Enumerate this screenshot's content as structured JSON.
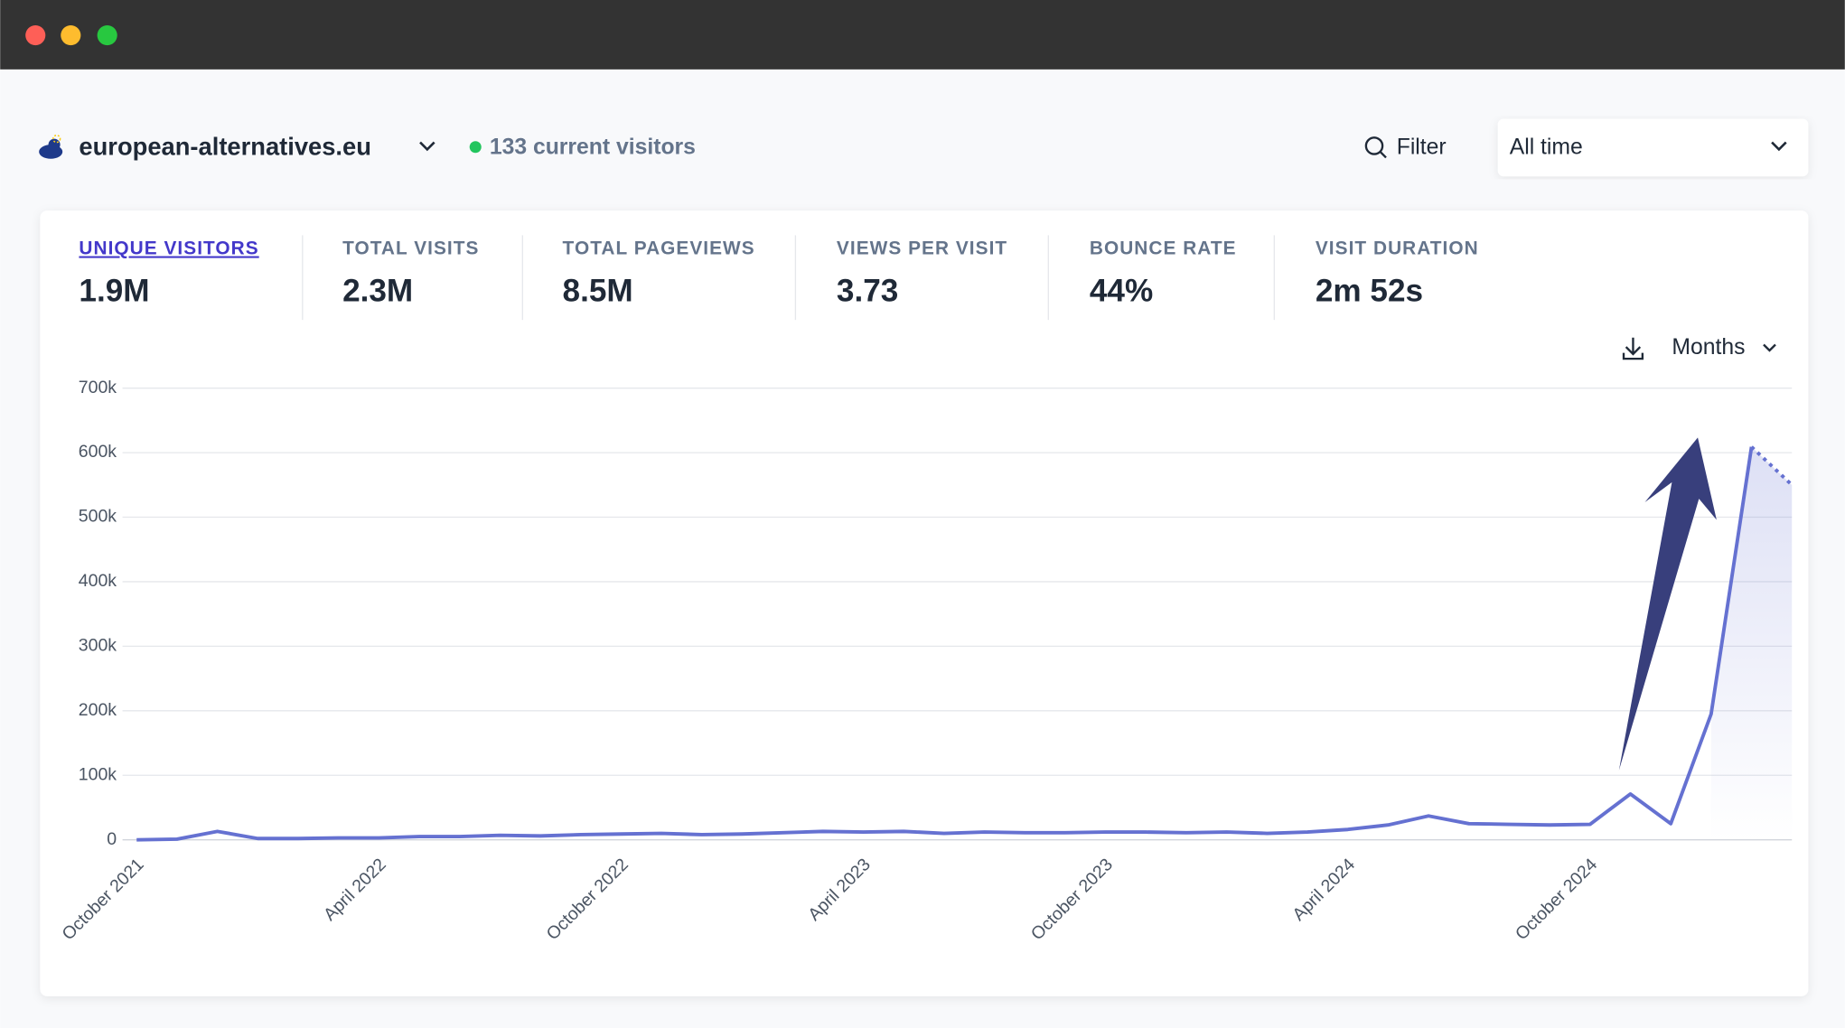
{
  "header": {
    "site": "european-alternatives.eu",
    "current_visitors": "133 current visitors",
    "filter": "Filter",
    "period": "All time"
  },
  "metrics": [
    {
      "label": "UNIQUE VISITORS",
      "value": "1.9M"
    },
    {
      "label": "TOTAL VISITS",
      "value": "2.3M"
    },
    {
      "label": "TOTAL PAGEVIEWS",
      "value": "8.5M"
    },
    {
      "label": "VIEWS PER VISIT",
      "value": "3.73"
    },
    {
      "label": "BOUNCE RATE",
      "value": "44%"
    },
    {
      "label": "VISIT DURATION",
      "value": "2m 52s"
    }
  ],
  "interval": "Months",
  "chart_data": {
    "type": "line",
    "categories": [
      "October 2021",
      null,
      null,
      null,
      null,
      null,
      "April 2022",
      null,
      null,
      null,
      null,
      null,
      "October 2022",
      null,
      null,
      null,
      null,
      null,
      "April 2023",
      null,
      null,
      null,
      null,
      null,
      "October 2023",
      null,
      null,
      null,
      null,
      null,
      "April 2024",
      null,
      null,
      null,
      null,
      null,
      "October 2024",
      null,
      null,
      null,
      null,
      null
    ],
    "series": [
      {
        "name": "Unique visitors",
        "color": "#6571d1",
        "values": [
          0,
          1000,
          13000,
          2000,
          2000,
          3000,
          3000,
          5000,
          5000,
          7000,
          6000,
          8000,
          9000,
          10000,
          8000,
          9000,
          11000,
          13000,
          12000,
          13000,
          10000,
          12000,
          11000,
          11000,
          12000,
          12000,
          11000,
          12000,
          10000,
          12000,
          16000,
          23000,
          37000,
          25000,
          24000,
          23000,
          24000,
          71000,
          25000,
          195000,
          609000,
          550000
        ]
      }
    ],
    "ylim": [
      0,
      700000
    ],
    "yticks": [
      0,
      {
        "value": 100000,
        "label": "100k"
      },
      {
        "value": 200000,
        "label": "200k"
      },
      {
        "value": 300000,
        "label": "300k"
      },
      {
        "value": 400000,
        "label": "400k"
      },
      {
        "value": 500000,
        "label": "500k"
      },
      {
        "value": 600000,
        "label": "600k"
      },
      {
        "value": 700000,
        "label": "700k"
      }
    ],
    "grid": true,
    "dotted_last_segment": true
  }
}
